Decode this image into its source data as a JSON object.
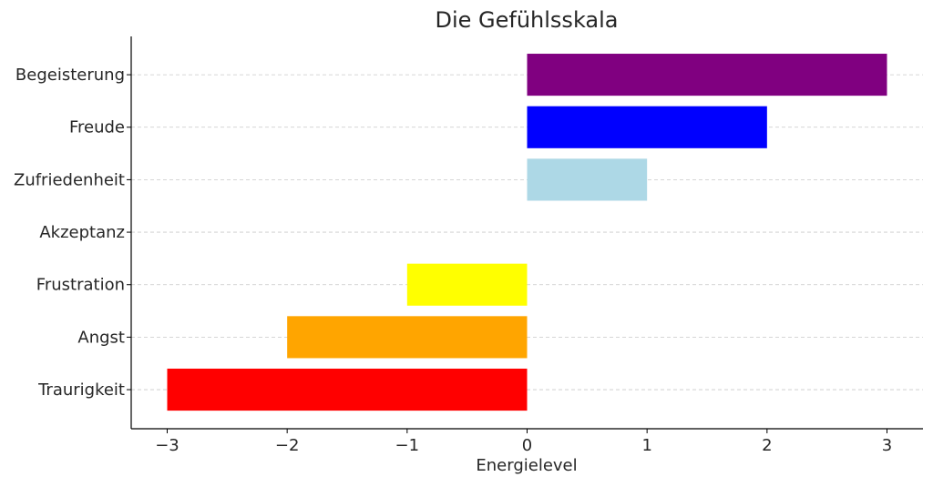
{
  "chart_data": {
    "type": "bar",
    "orientation": "horizontal",
    "title": "Die Gefühlsskala",
    "xlabel": "Energielevel",
    "ylabel": "",
    "categories": [
      "Traurigkeit",
      "Angst",
      "Frustration",
      "Akzeptanz",
      "Zufriedenheit",
      "Freude",
      "Begeisterung"
    ],
    "values": [
      -3,
      -2,
      -1,
      0,
      1,
      2,
      3
    ],
    "colors": [
      "#ff0000",
      "#ffa500",
      "#ffff00",
      "#808080",
      "#add8e6",
      "#0000ff",
      "#800080"
    ],
    "xlim": [
      -3.3,
      3.3
    ],
    "xticks": [
      -3,
      -2,
      -1,
      0,
      1,
      2,
      3
    ],
    "xtick_labels": [
      "−3",
      "−2",
      "−1",
      "0",
      "1",
      "2",
      "3"
    ],
    "grid": "horizontal dashed"
  }
}
